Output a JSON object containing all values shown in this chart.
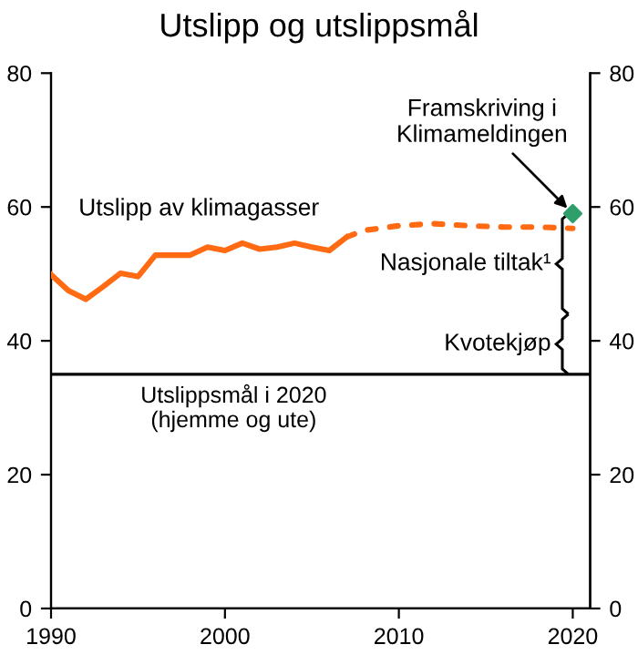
{
  "chart_data": {
    "type": "line",
    "title": "Utslipp og utslippsmål",
    "series": [
      {
        "color": "#ff6a13",
        "line_style": "solid",
        "x": [
          1990,
          1991,
          1992,
          1993,
          1994,
          1995,
          1996,
          1997,
          1998,
          1999,
          2000,
          2001,
          2002,
          2003,
          2004,
          2005,
          2006,
          2007
        ],
        "values": [
          49.9,
          47.5,
          46.2,
          48.1,
          50.1,
          49.6,
          52.8,
          52.8,
          52.8,
          54.0,
          53.5,
          54.6,
          53.7,
          54.0,
          54.6,
          54.0,
          53.5,
          55.5
        ]
      },
      {
        "color": "#ff6a13",
        "line_style": "dotted",
        "x": [
          2007,
          2008,
          2010,
          2012,
          2014,
          2016,
          2018,
          2020
        ],
        "values": [
          55.5,
          56.5,
          57.2,
          57.5,
          57.2,
          57.0,
          57.0,
          56.8
        ]
      },
      {
        "type": "scatter",
        "color": "#2e9e6a",
        "marker": "diamond",
        "x": [
          2020
        ],
        "values": [
          59
        ]
      }
    ],
    "annotations": [
      "Utslipp av klimagasser",
      {
        "text": "Framskriving i\nKlimameldingen",
        "x": 2020,
        "y": 59
      },
      "Nasjonale tiltak¹",
      {
        "text": "Kvotekjøp",
        "x": 2019.4,
        "y": 35
      }
    ],
    "ref_lines": [
      {
        "axis": "y",
        "value": 35,
        "label": "Utslippsmål i 2020\n(hjemme og ute)",
        "color": "#000000"
      }
    ],
    "xlim": [
      1990,
      2021
    ],
    "xticks": [
      1990,
      2000,
      2010,
      2020
    ],
    "ylim": [
      0,
      80
    ],
    "yticks": [
      0,
      20,
      40,
      60,
      80
    ],
    "y2lim": [
      0,
      80
    ],
    "y2ticks": [
      0,
      20,
      40,
      60,
      80
    ],
    "grid": false,
    "legend": false
  }
}
